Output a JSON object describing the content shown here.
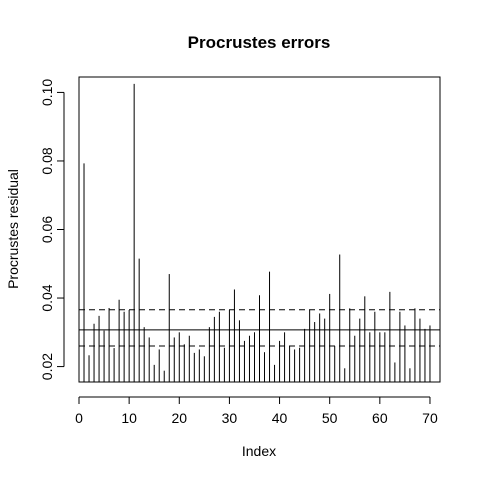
{
  "chart_data": {
    "type": "bar",
    "title": "Procrustes errors",
    "xlabel": "Index",
    "ylabel": "Procrustes residual",
    "xlim": [
      0,
      72
    ],
    "ylim": [
      0.0155,
      0.1045
    ],
    "x_ticks": [
      0,
      10,
      20,
      30,
      40,
      50,
      60,
      70
    ],
    "y_ticks": [
      0.02,
      0.04,
      0.06,
      0.08,
      0.1
    ],
    "y_tick_labels": [
      "0.02",
      "0.04",
      "0.06",
      "0.08",
      "0.10"
    ],
    "grid": false,
    "reference_lines": [
      {
        "style": "dashed",
        "value": 0.0366
      },
      {
        "style": "solid",
        "value": 0.0307
      },
      {
        "style": "dashed",
        "value": 0.026
      }
    ],
    "x": [
      1,
      2,
      3,
      4,
      5,
      6,
      7,
      8,
      9,
      10,
      11,
      12,
      13,
      14,
      15,
      16,
      17,
      18,
      19,
      20,
      21,
      22,
      23,
      24,
      25,
      26,
      27,
      28,
      29,
      30,
      31,
      32,
      33,
      34,
      35,
      36,
      37,
      38,
      39,
      40,
      41,
      42,
      43,
      44,
      45,
      46,
      47,
      48,
      49,
      50,
      51,
      52,
      53,
      54,
      55,
      56,
      57,
      58,
      59,
      60,
      61,
      62,
      63,
      64,
      65,
      66,
      67,
      68,
      69,
      70
    ],
    "values": [
      0.0793,
      0.0233,
      0.0325,
      0.0348,
      0.0305,
      0.0371,
      0.0254,
      0.0395,
      0.036,
      0.0365,
      0.1025,
      0.0515,
      0.0315,
      0.0285,
      0.0205,
      0.025,
      0.0188,
      0.047,
      0.0285,
      0.03,
      0.0265,
      0.029,
      0.024,
      0.025,
      0.023,
      0.0315,
      0.0345,
      0.036,
      0.0255,
      0.0365,
      0.0425,
      0.0335,
      0.0275,
      0.029,
      0.03,
      0.0408,
      0.0242,
      0.0477,
      0.0205,
      0.0275,
      0.03,
      0.026,
      0.025,
      0.0255,
      0.031,
      0.0365,
      0.033,
      0.0355,
      0.034,
      0.0412,
      0.026,
      0.0527,
      0.0195,
      0.037,
      0.029,
      0.034,
      0.0405,
      0.03,
      0.036,
      0.03,
      0.03,
      0.0418,
      0.0212,
      0.036,
      0.032,
      0.0195,
      0.037,
      0.034,
      0.031,
      0.032
    ]
  }
}
